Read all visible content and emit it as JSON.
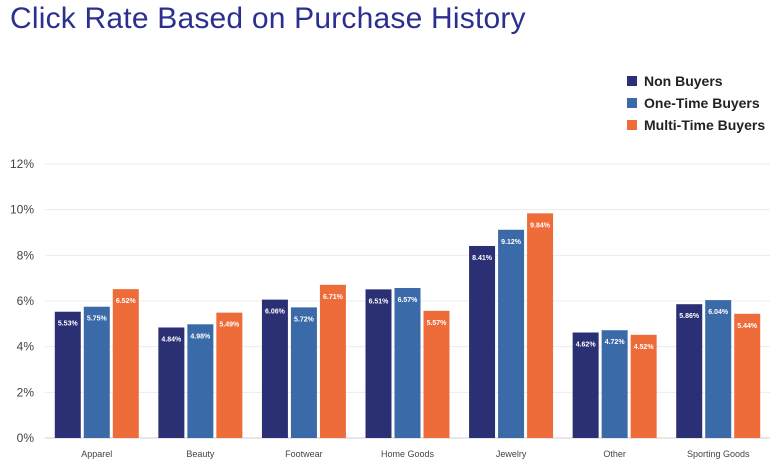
{
  "title": "Click Rate Based on Purchase History",
  "legend": {
    "items": [
      {
        "label": "Non Buyers",
        "color": "#2b3075"
      },
      {
        "label": "One-Time Buyers",
        "color": "#3b6aa8"
      },
      {
        "label": "Multi-Time Buyers",
        "color": "#ee6c3a"
      }
    ]
  },
  "chart_data": {
    "type": "bar",
    "title": "Click Rate Based on Purchase History",
    "categories": [
      "Apparel",
      "Beauty",
      "Footwear",
      "Home Goods",
      "Jewelry",
      "Other",
      "Sporting Goods"
    ],
    "series": [
      {
        "name": "Non Buyers",
        "color": "#2b3075",
        "values": [
          5.53,
          4.84,
          6.06,
          6.51,
          8.41,
          4.62,
          5.86
        ],
        "labels": [
          "5.53%",
          "4.84%",
          "6.06%",
          "6.51%",
          "8.41%",
          "4.62%",
          "5.86%"
        ]
      },
      {
        "name": "One-Time Buyers",
        "color": "#3b6aa8",
        "values": [
          5.75,
          4.98,
          5.72,
          6.57,
          9.12,
          4.72,
          6.04
        ],
        "labels": [
          "5.75%",
          "4.98%",
          "5.72%",
          "6.57%",
          "9.12%",
          "4.72%",
          "6.04%"
        ]
      },
      {
        "name": "Multi-Time Buyers",
        "color": "#ee6c3a",
        "values": [
          6.52,
          5.49,
          6.71,
          5.57,
          9.84,
          4.52,
          5.44
        ],
        "labels": [
          "6.52%",
          "5.49%",
          "6.71%",
          "5.57%",
          "9.84%",
          "4.52%",
          "5.44%"
        ]
      }
    ],
    "yticks": [
      "0%",
      "2%",
      "4%",
      "6%",
      "8%",
      "10%",
      "12%"
    ],
    "ylim": [
      0,
      12
    ],
    "grid": true,
    "legend_position": "top-right",
    "xlabel": "",
    "ylabel": ""
  }
}
